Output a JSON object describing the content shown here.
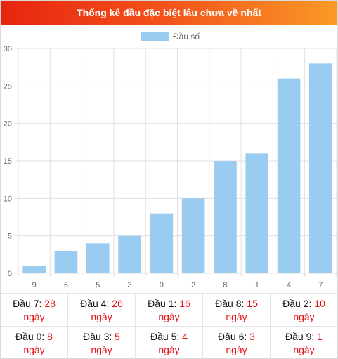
{
  "header": {
    "title": "Thống kê đầu đặc biệt lâu chưa về nhất"
  },
  "chart_data": {
    "type": "bar",
    "title": "",
    "xlabel": "",
    "ylabel": "",
    "categories": [
      "9",
      "6",
      "5",
      "3",
      "0",
      "2",
      "8",
      "1",
      "4",
      "7"
    ],
    "series": [
      {
        "name": "Đầu số",
        "values": [
          1,
          3,
          4,
          5,
          8,
          10,
          15,
          16,
          26,
          28
        ]
      }
    ],
    "ylim": [
      0,
      30
    ],
    "yticks": [
      0,
      5,
      10,
      15,
      20,
      25,
      30
    ],
    "grid": true,
    "legend": "top-center",
    "bar_color": "#99ccf0"
  },
  "stats": {
    "rows": [
      [
        {
          "label": "Đầu 7:",
          "value": "28",
          "unit": "ngày"
        },
        {
          "label": "Đầu 4:",
          "value": "26",
          "unit": "ngày"
        },
        {
          "label": "Đầu 1:",
          "value": "16",
          "unit": "ngày"
        },
        {
          "label": "Đầu 8:",
          "value": "15",
          "unit": "ngày"
        },
        {
          "label": "Đầu 2:",
          "value": "10",
          "unit": "ngày"
        }
      ],
      [
        {
          "label": "Đầu 0:",
          "value": "8",
          "unit": "ngày"
        },
        {
          "label": "Đầu 3:",
          "value": "5",
          "unit": "ngày"
        },
        {
          "label": "Đầu 5:",
          "value": "4",
          "unit": "ngày"
        },
        {
          "label": "Đầu 6:",
          "value": "3",
          "unit": "ngày"
        },
        {
          "label": "Đầu 9:",
          "value": "1",
          "unit": "ngày"
        }
      ]
    ]
  }
}
